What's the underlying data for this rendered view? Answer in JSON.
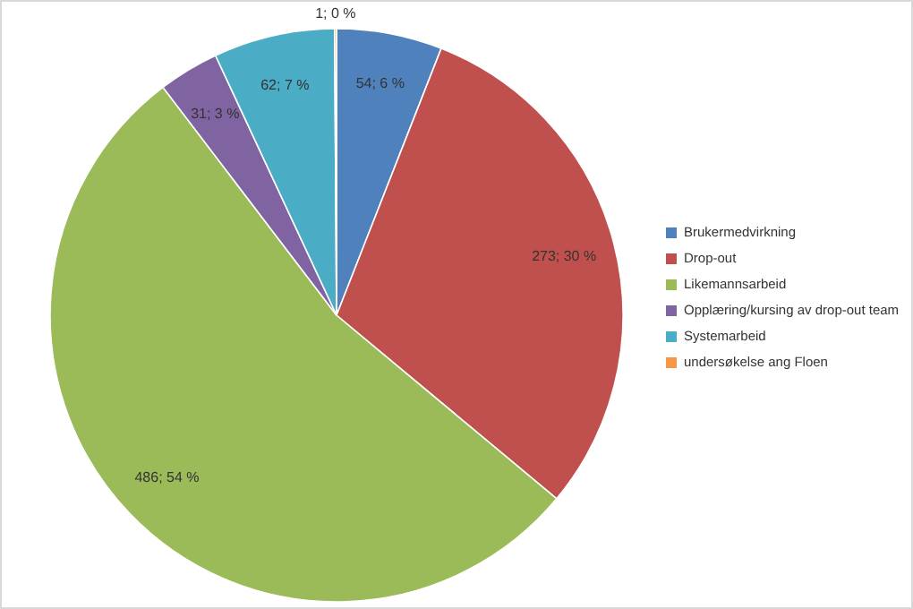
{
  "chart_data": {
    "type": "pie",
    "categories": [
      "Brukermedvirkning",
      "Drop-out",
      "Likemannsarbeid",
      "Opplæring/kursing av drop-out team",
      "Systemarbeid",
      "undersøkelse ang Floen"
    ],
    "values": [
      54,
      273,
      486,
      31,
      62,
      1
    ],
    "colors": [
      "#4f81bd",
      "#c0504d",
      "#9bbb59",
      "#8064a2",
      "#4bacc6",
      "#f79646"
    ],
    "value_labels": [
      "54; 6 %",
      "273; 30 %",
      "486; 54 %",
      "31; 3 %",
      "62; 7 %",
      "1; 0 %"
    ],
    "legend": "right"
  }
}
